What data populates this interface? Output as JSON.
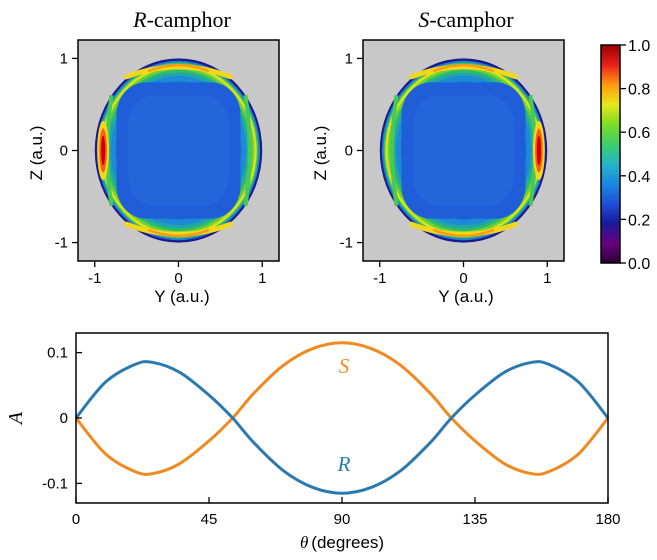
{
  "chart_data": [
    {
      "type": "heatmap",
      "title_italic": "R",
      "title_rest": "-camphor",
      "xlabel": "Y (a.u.)",
      "ylabel": "Z (a.u.)",
      "xlim": [
        -1.2,
        1.2
      ],
      "ylim": [
        -1.2,
        1.2
      ],
      "xticks": [
        -1,
        0,
        1
      ],
      "xtick_labels": [
        "-1",
        "0",
        "1"
      ],
      "yticks": [
        -1,
        0,
        1
      ],
      "ytick_labels": [
        "-1",
        "0",
        "1"
      ],
      "disk_radius": 1.0,
      "background_color": "#c8c8c8",
      "hotspot_side": "left"
    },
    {
      "type": "heatmap",
      "title_italic": "S",
      "title_rest": "-camphor",
      "xlabel": "Y (a.u.)",
      "ylabel": "Z (a.u.)",
      "xlim": [
        -1.2,
        1.2
      ],
      "ylim": [
        -1.2,
        1.2
      ],
      "xticks": [
        -1,
        0,
        1
      ],
      "xtick_labels": [
        "-1",
        "0",
        "1"
      ],
      "yticks": [
        -1,
        0,
        1
      ],
      "ytick_labels": [
        "-1",
        "0",
        "1"
      ],
      "disk_radius": 1.0,
      "background_color": "#c8c8c8",
      "hotspot_side": "right"
    },
    {
      "type": "colorbar",
      "range": [
        0.0,
        1.0
      ],
      "ticks": [
        0.0,
        0.2,
        0.4,
        0.6,
        0.8,
        1.0
      ],
      "tick_labels": [
        "0.0",
        "0.2",
        "0.4",
        "0.6",
        "0.8",
        "1.0"
      ],
      "colormap": "jet",
      "colors": [
        "#2b0033",
        "#6a0080",
        "#1a1a9a",
        "#1e4fd8",
        "#1a88e0",
        "#25b5c8",
        "#3ccf6a",
        "#7fdc22",
        "#e8e81a",
        "#ff9a10",
        "#e8201a",
        "#9a0000"
      ]
    },
    {
      "type": "line",
      "xlabel_symbol": "θ",
      "xlabel_rest": "(degrees)",
      "ylabel": "A",
      "xlim": [
        0,
        180
      ],
      "ylim": [
        -0.13,
        0.13
      ],
      "xticks": [
        0,
        45,
        90,
        135,
        180
      ],
      "xtick_labels": [
        "0",
        "45",
        "90",
        "135",
        "180"
      ],
      "yticks": [
        -0.1,
        0,
        0.1
      ],
      "ytick_labels": [
        "-0.1",
        "0",
        "0.1"
      ],
      "series": [
        {
          "name": "S",
          "color": "#f0891f",
          "x": [
            0,
            10,
            20,
            26,
            35,
            45,
            53,
            60,
            70,
            80,
            90,
            100,
            110,
            120,
            127,
            135,
            145,
            154,
            160,
            170,
            180
          ],
          "y": [
            0,
            -0.055,
            -0.082,
            -0.085,
            -0.07,
            -0.035,
            0.0,
            0.037,
            0.08,
            0.106,
            0.115,
            0.106,
            0.08,
            0.037,
            0.0,
            -0.035,
            -0.07,
            -0.085,
            -0.082,
            -0.055,
            0
          ]
        },
        {
          "name": "R",
          "color": "#2a79b0",
          "x": [
            0,
            10,
            20,
            26,
            35,
            45,
            53,
            60,
            70,
            80,
            90,
            100,
            110,
            120,
            127,
            135,
            145,
            154,
            160,
            170,
            180
          ],
          "y": [
            0,
            0.055,
            0.082,
            0.085,
            0.07,
            0.035,
            0.0,
            -0.037,
            -0.08,
            -0.106,
            -0.115,
            -0.106,
            -0.08,
            -0.037,
            0.0,
            0.035,
            0.07,
            0.085,
            0.082,
            0.055,
            0
          ]
        }
      ]
    }
  ]
}
